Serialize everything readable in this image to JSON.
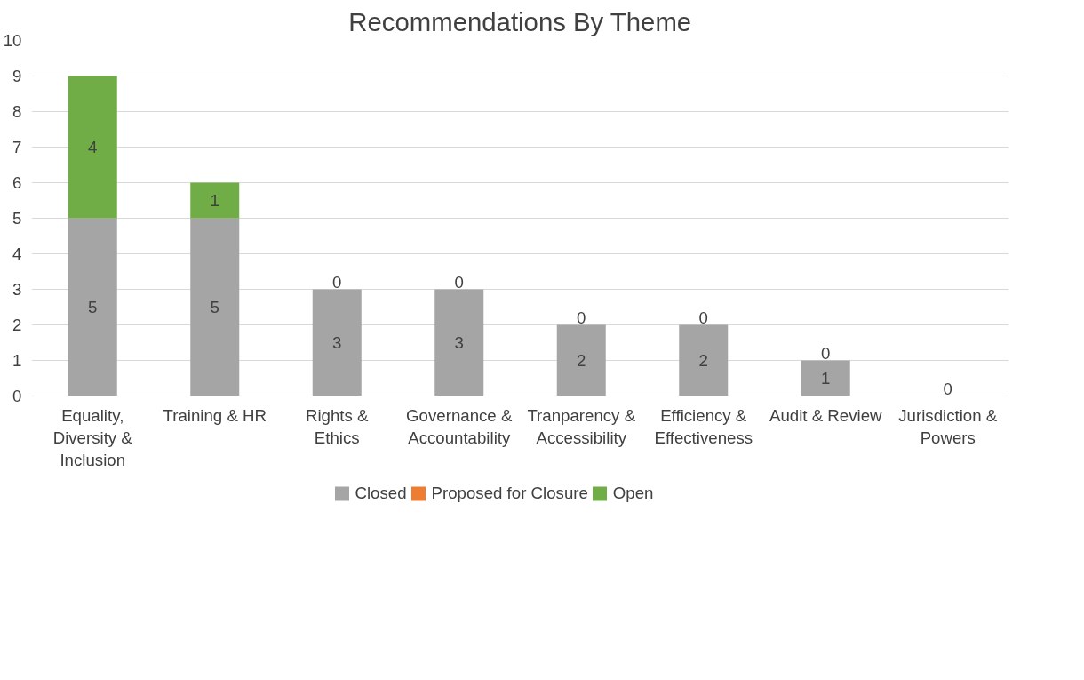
{
  "chart_data": {
    "type": "bar",
    "title": "Recommendations By Theme",
    "categories": [
      "Equality, Diversity & Inclusion",
      "Training & HR",
      "Rights & Ethics",
      "Governance & Accountability",
      "Tranparency & Accessibility",
      "Efficiency & Effectiveness",
      "Audit & Review",
      "Jurisdiction & Powers"
    ],
    "stacked": true,
    "series": [
      {
        "name": "Closed",
        "color": "#a5a5a5",
        "values": [
          5,
          5,
          3,
          3,
          2,
          2,
          1,
          0
        ],
        "value_labels": [
          "5",
          "5",
          "3",
          "3",
          "2",
          "2",
          "1",
          null
        ]
      },
      {
        "name": "Proposed for Closure",
        "color": "#ed7d31",
        "values": [
          0,
          0,
          0,
          0,
          0,
          0,
          0,
          0
        ]
      },
      {
        "name": "Open",
        "color": "#70ad47",
        "values": [
          4,
          1,
          0,
          0,
          0,
          0,
          0,
          0
        ],
        "value_labels": [
          "4",
          "1",
          "0",
          "0",
          "0",
          "0",
          "0",
          "0"
        ]
      }
    ],
    "ylim": [
      0,
      10
    ],
    "yticks": [
      0,
      1,
      2,
      3,
      4,
      5,
      6,
      7,
      8,
      9,
      10
    ],
    "grid": "y",
    "legend": "bottom"
  }
}
